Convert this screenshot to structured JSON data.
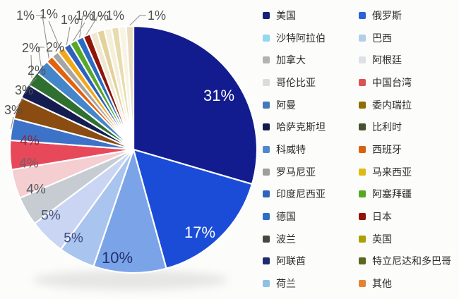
{
  "chart_data": {
    "type": "pie",
    "title": "",
    "value_suffix": "%",
    "legend_position": "right",
    "legend_columns": 2,
    "grid": false,
    "series": [
      {
        "label": "美国",
        "value": 31,
        "color": "#131c8e",
        "legend_color": "#14207c"
      },
      {
        "label": "俄罗斯",
        "value": 17,
        "color": "#1a4cd8",
        "legend_color": "#2a62d9"
      },
      {
        "label": "沙特阿拉伯",
        "value": 10,
        "color": "#7aa3e8",
        "legend_color": "#92d8f2"
      },
      {
        "label": "巴西",
        "value": 5,
        "color": "#a9c4ee",
        "legend_color": "#b4cee9"
      },
      {
        "label": "加拿大",
        "value": 5,
        "color": "#c9d5f2",
        "legend_color": "#b3b3b3"
      },
      {
        "label": "阿根廷",
        "value": 4,
        "color": "#c7ccd3",
        "legend_color": "#dde1e7"
      },
      {
        "label": "哥伦比亚",
        "value": 4,
        "color": "#f4ced1",
        "legend_color": "#dcdcdc"
      },
      {
        "label": "中国台湾",
        "value": 4,
        "color": "#e7495b",
        "legend_color": "#d95450"
      },
      {
        "label": "阿曼",
        "value": 3,
        "color": "#3c73c9",
        "legend_color": "#4478bd"
      },
      {
        "label": "委内瑞拉",
        "value": 3,
        "color": "#8a4c10",
        "legend_color": "#8d6e05"
      },
      {
        "label": "哈萨克斯坦",
        "value": 2,
        "color": "#151d50",
        "legend_color": "#131b4e"
      },
      {
        "label": "比利时",
        "value": 2,
        "color": "#2f7031",
        "legend_color": "#45512f"
      },
      {
        "label": "科威特",
        "value": 2,
        "color": "#4585ca",
        "legend_color": "#4e8ac9"
      },
      {
        "label": "西班牙",
        "value": 1,
        "color": "#e2620e",
        "legend_color": "#d9610f"
      },
      {
        "label": "罗马尼亚",
        "value": 1,
        "color": "#a5a5a5",
        "legend_color": "#9e9e9e"
      },
      {
        "label": "马来西亚",
        "value": 1,
        "color": "#f0a81b",
        "legend_color": "#e0ba13"
      },
      {
        "label": "印度尼西亚",
        "value": 1,
        "color": "#2f62ba",
        "legend_color": "#3165bb"
      },
      {
        "label": "阿塞拜疆",
        "value": 1,
        "color": "#58a827",
        "legend_color": "#56a821"
      },
      {
        "label": "德国",
        "value": 1,
        "color": "#2a6cc3",
        "legend_color": "#2e6ec4"
      },
      {
        "label": "日本",
        "value": 1,
        "color": "#8f1508",
        "legend_color": "#911407"
      },
      {
        "label": "波兰",
        "value": 1,
        "color": "#efe7d1",
        "legend_color": "#47473f"
      },
      {
        "label": "英国",
        "value": 1,
        "color": "#e2d29b",
        "legend_color": "#aaa004"
      },
      {
        "label": "阿联酋",
        "value": 1,
        "color": "#f5eed9",
        "legend_color": "#1d2b6e"
      },
      {
        "label": "特立尼达和多巴哥",
        "value": 1,
        "color": "#e8dbae",
        "legend_color": "#5c661c"
      },
      {
        "label": "荷兰",
        "value": 1,
        "color": "#f8f3e3",
        "legend_color": "#8ec1e6"
      },
      {
        "label": "其他",
        "value": 1,
        "color": "#eadec0",
        "legend_color": "#e58334"
      }
    ],
    "colors": {
      "background": "#fcfcfb",
      "label_outside": "#4f4f4f",
      "label_inside_light": "#ffffff",
      "leader_line": "#8a8a8a",
      "slice_border": "#ffffff"
    }
  }
}
